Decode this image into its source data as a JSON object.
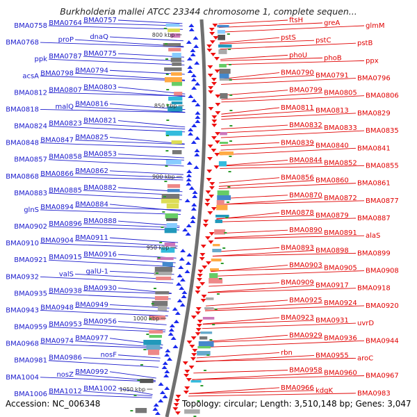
{
  "title": "Burkholderia mallei ATCC 23344 chromosome 1, complete sequen...",
  "footer": {
    "accession": "Accession: NC_006348",
    "topology": "Topology: circular; Length: 3,510,148 bp; Genes: 3,047"
  },
  "colors": {
    "left_labels": "#1a1acc",
    "right_labels": "#e00000",
    "left_arrows": "#1a2aee",
    "right_arrows": "#ee1010",
    "backbone": "#707070",
    "bp_ticks": "#2a9a2a"
  },
  "bp_scale": [
    {
      "label": "800 kbp",
      "kbp": 800
    },
    {
      "label": "850 kbp",
      "kbp": 850
    },
    {
      "label": "900 kbp",
      "kbp": 900
    },
    {
      "label": "950 kbp",
      "kbp": 950
    },
    {
      "label": "1000 kbp",
      "kbp": 1000
    },
    {
      "label": "1050 kbp",
      "kbp": 1050
    }
  ],
  "left_genes": [
    "BMA0757",
    "BMA0764",
    "BMA0758",
    "dnaQ",
    "proP",
    "BMA0768",
    "BMA0775",
    "BMA0787",
    "ppk",
    "BMA0794",
    "BMA0798",
    "acsA",
    "BMA0803",
    "BMA0807",
    "BMA0812",
    "BMA0816",
    "malQ",
    "BMA0818",
    "BMA0821",
    "BMA0823",
    "BMA0824",
    "BMA0825",
    "BMA0847",
    "BMA0848",
    "BMA0853",
    "BMA0858",
    "BMA0857",
    "BMA0862",
    "BMA0866",
    "BMA0868",
    "BMA0882",
    "BMA0885",
    "BMA0883",
    "BMA0884",
    "BMA0894",
    "glnS",
    "BMA0888",
    "BMA0896",
    "BMA0902",
    "BMA0911",
    "BMA0904",
    "BMA0910",
    "BMA0916",
    "BMA0915",
    "BMA0921",
    "galU-1",
    "valS",
    "BMA0932",
    "BMA0930",
    "BMA0938",
    "BMA0935",
    "BMA0949",
    "BMA0948",
    "BMA0943",
    "BMA0956",
    "BMA0953",
    "BMA0959",
    "BMA0977",
    "BMA0974",
    "BMA0968",
    "nosF",
    "BMA0986",
    "BMA0981",
    "BMA0992",
    "nosZ",
    "BMA1004",
    "BMA1002",
    "BMA1012",
    "BMA1006"
  ],
  "right_genes": [
    "ftsH",
    "greA",
    "glmM",
    "pstS",
    "pstC",
    "pstB",
    "phoU",
    "phoB",
    "ppx",
    "BMA0790",
    "BMA0791",
    "BMA0796",
    "BMA0799",
    "BMA0805",
    "BMA0806",
    "BMA0811",
    "BMA0813",
    "BMA0829",
    "BMA0832",
    "BMA0833",
    "BMA0835",
    "BMA0839",
    "BMA0840",
    "BMA0841",
    "BMA0844",
    "BMA0852",
    "BMA0855",
    "BMA0856",
    "BMA0860",
    "BMA0861",
    "BMA0870",
    "BMA0872",
    "BMA0877",
    "BMA0878",
    "BMA0879",
    "BMA0887",
    "BMA0890",
    "BMA0891",
    "alaS",
    "BMA0893",
    "BMA0898",
    "BMA0899",
    "BMA0903",
    "BMA0905",
    "BMA0908",
    "BMA0909",
    "BMA0917",
    "BMA0918",
    "BMA0925",
    "BMA0924",
    "BMA0920",
    "BMA0923",
    "BMA0931",
    "uvrD",
    "BMA0929",
    "BMA0936",
    "BMA0944",
    "rbn",
    "BMA0955",
    "aroC",
    "BMA0958",
    "BMA0960",
    "BMA0967",
    "BMA0966",
    "kdgK",
    "BMA0983"
  ]
}
